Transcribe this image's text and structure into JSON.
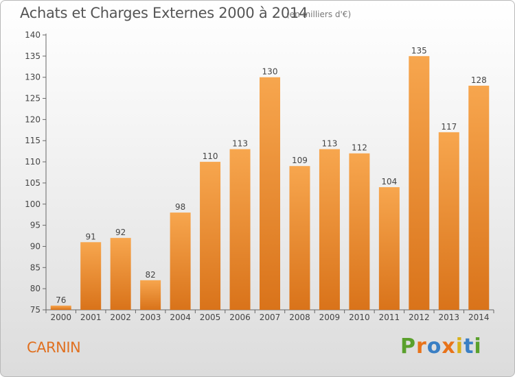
{
  "header": {
    "title": "Achats et Charges Externes 2000 à 2014",
    "subtitle": "(en milliers d'€)"
  },
  "footer": {
    "commune": "CARNIN",
    "logo_text": "Proxiti"
  },
  "colors": {
    "bar_light": "#f7a64e",
    "bar_dark": "#d9731a",
    "commune_text": "#e07020",
    "logo_letters": [
      "#5aa02c",
      "#e8731a",
      "#3a7fc4",
      "#e8731a",
      "#d9b11a",
      "#3a7fc4",
      "#5aa02c"
    ]
  },
  "chart_data": {
    "type": "bar",
    "categories": [
      "2000",
      "2001",
      "2002",
      "2003",
      "2004",
      "2005",
      "2006",
      "2007",
      "2008",
      "2009",
      "2010",
      "2011",
      "2012",
      "2013",
      "2014"
    ],
    "values": [
      76,
      91,
      92,
      82,
      98,
      110,
      113,
      130,
      109,
      113,
      112,
      104,
      135,
      117,
      128
    ],
    "ylim": [
      75,
      140
    ],
    "yticks": [
      75,
      80,
      85,
      90,
      95,
      100,
      105,
      110,
      115,
      120,
      125,
      130,
      135,
      140
    ],
    "grid": false,
    "title": "Achats et Charges Externes 2000 à 2014",
    "xlabel": "",
    "ylabel": ""
  }
}
